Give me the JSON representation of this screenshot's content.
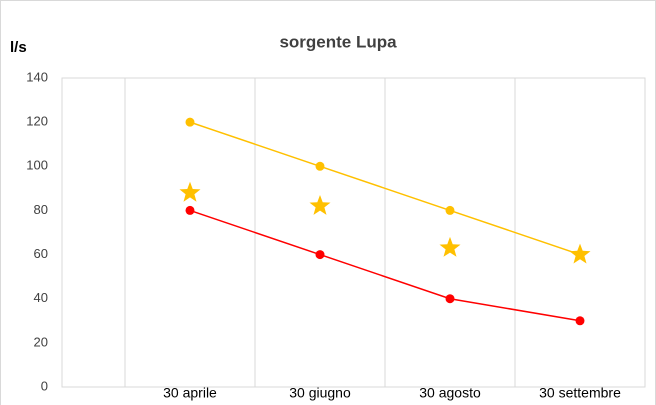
{
  "chart_data": {
    "type": "line",
    "title": "sorgente Lupa",
    "ylabel": "l/s",
    "categories": [
      "30 aprile",
      "30 giugno",
      "30 agosto",
      "30 settembre"
    ],
    "series": [
      {
        "color": "#ffc000",
        "marker": "circle",
        "line": true,
        "values": [
          120,
          100,
          80,
          60
        ]
      },
      {
        "color": "#ff0000",
        "marker": "circle",
        "line": true,
        "values": [
          80,
          60,
          40,
          30
        ]
      },
      {
        "color": "#ffc000",
        "marker": "star",
        "line": false,
        "values": [
          88,
          82,
          63,
          60
        ]
      }
    ],
    "ylim": [
      0,
      140
    ],
    "yticks": [
      0,
      20,
      40,
      60,
      80,
      100,
      120,
      140
    ]
  }
}
